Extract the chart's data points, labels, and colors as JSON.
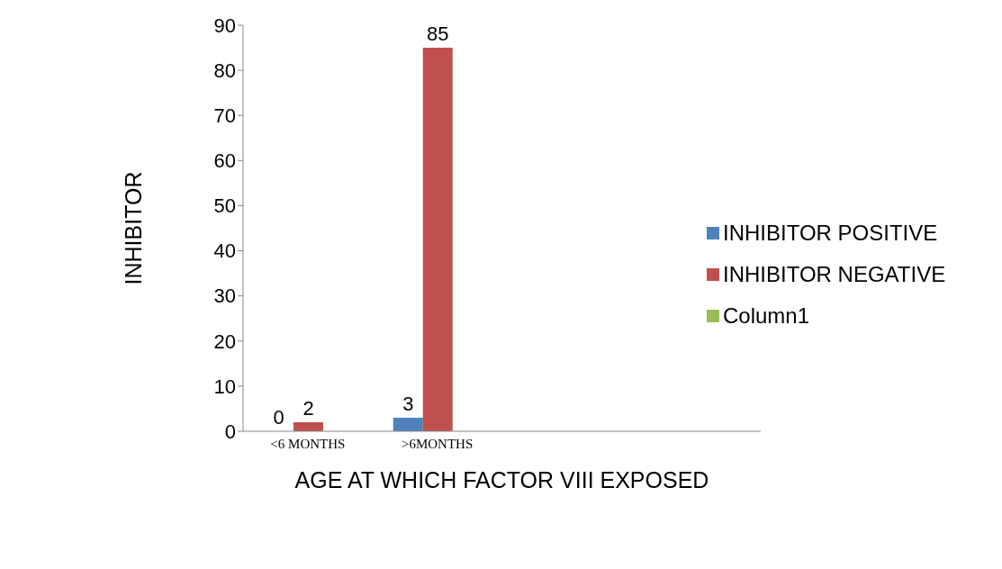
{
  "chart_data": {
    "type": "bar",
    "ylabel": "INHIBITOR",
    "xlabel": "AGE AT WHICH FACTOR  VIII EXPOSED",
    "categories": [
      "<6 MONTHS",
      ">6MONTHS",
      null,
      null
    ],
    "series": [
      {
        "name": "INHIBITOR POSITIVE",
        "color": "#4f81bd",
        "values": [
          0,
          3,
          null,
          null
        ]
      },
      {
        "name": "INHIBITOR NEGATIVE",
        "color": "#c0504d",
        "values": [
          2,
          85,
          null,
          null
        ]
      },
      {
        "name": "Column1",
        "color": "#9bbb59",
        "values": [
          null,
          null,
          null,
          null
        ]
      }
    ],
    "ylim": [
      0,
      90
    ],
    "yticks": [
      0,
      10,
      20,
      30,
      40,
      50,
      60,
      70,
      80,
      90
    ],
    "data_labels": true,
    "legend": "right",
    "grid": false
  }
}
